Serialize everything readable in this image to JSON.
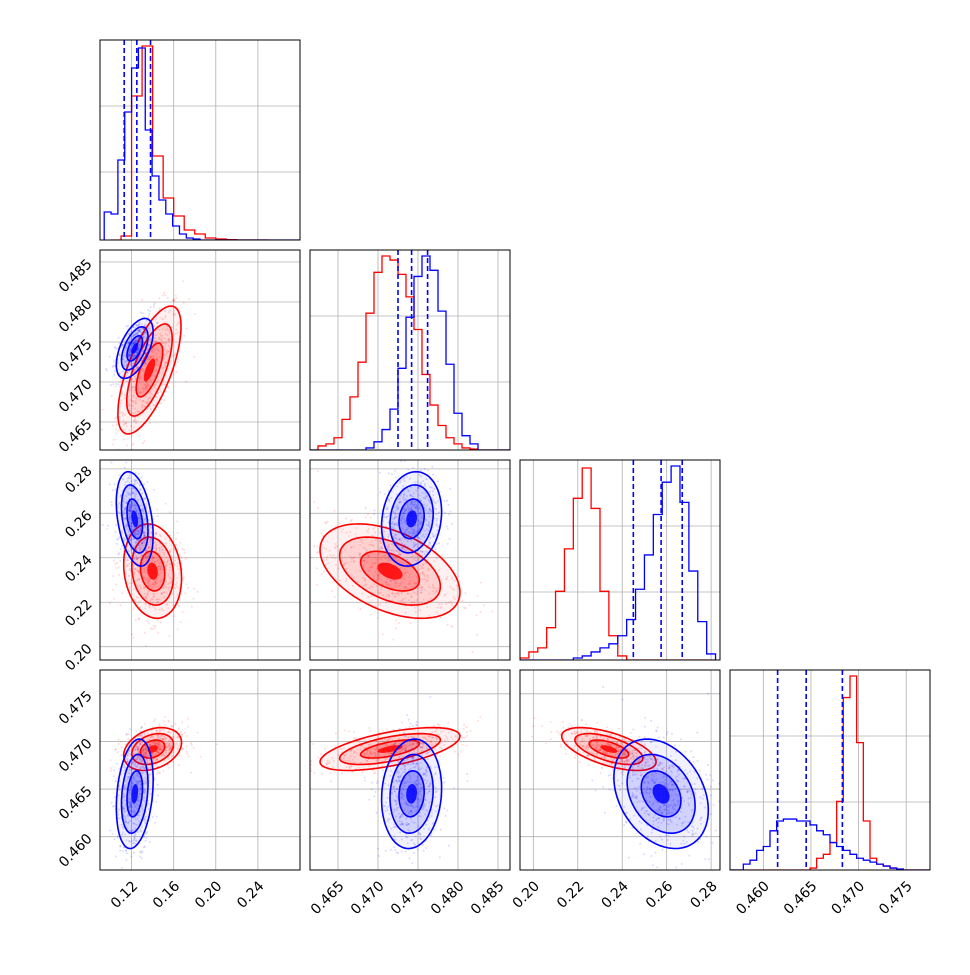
{
  "chart_data": {
    "type": "corner",
    "colors": {
      "red": "#ff0000",
      "blue": "#0000ff",
      "grid": "#b0b0b0"
    },
    "grid": true,
    "params": [
      {
        "range": [
          0.09,
          0.28
        ],
        "ticks": [
          "0.12",
          "0.16",
          "0.20",
          "0.24"
        ]
      },
      {
        "range": [
          0.4615,
          0.4865
        ],
        "ticks": [
          "0.465",
          "0.470",
          "0.475",
          "0.480",
          "0.485"
        ]
      },
      {
        "range": [
          0.194,
          0.284
        ],
        "ticks": [
          "0.20",
          "0.22",
          "0.24",
          "0.26",
          "0.28"
        ]
      },
      {
        "range": [
          0.4565,
          0.4775
        ],
        "ticks": [
          "0.460",
          "0.465",
          "0.470",
          "0.475"
        ]
      }
    ],
    "quantiles_blue": [
      [
        0.113,
        0.125,
        0.138
      ],
      [
        0.4725,
        0.4742,
        0.4762
      ],
      [
        0.245,
        0.2575,
        0.267
      ],
      [
        0.4615,
        0.4645,
        0.4683
      ]
    ],
    "series": [
      {
        "color": "red",
        "hists": [
          {
            "x0": 0.1,
            "dx": 0.01,
            "counts": [
              0.0,
              0.02,
              0.72,
              0.97,
              0.42,
              0.21,
              0.12,
              0.05,
              0.03,
              0.01,
              0.005,
              0.002,
              0.0,
              0.0,
              0.0
            ]
          },
          {
            "x0": 0.4615,
            "dx": 0.001,
            "counts": [
              0.0,
              0.02,
              0.03,
              0.06,
              0.15,
              0.26,
              0.43,
              0.67,
              0.87,
              0.95,
              0.93,
              0.86,
              0.75,
              0.59,
              0.37,
              0.22,
              0.12,
              0.06,
              0.03,
              0.01,
              0.005,
              0.0,
              0.0,
              0.0,
              0.0
            ]
          },
          {
            "x0": 0.194,
            "dx": 0.004,
            "counts": [
              0.01,
              0.04,
              0.06,
              0.16,
              0.34,
              0.55,
              0.8,
              0.95,
              0.75,
              0.34,
              0.12,
              0.02,
              0.0,
              0.0,
              0.0,
              0.0,
              0.0,
              0.0,
              0.0,
              0.0,
              0.0,
              0.0
            ]
          },
          {
            "x0": 0.4565,
            "dx": 0.0007,
            "counts": [
              0.0,
              0.0,
              0.0,
              0.0,
              0.0,
              0.0,
              0.0,
              0.0,
              0.0,
              0.0,
              0.0,
              0.0,
              0.01,
              0.06,
              0.08,
              0.14,
              0.35,
              0.88,
              0.99,
              0.65,
              0.25,
              0.06,
              0.03,
              0.02,
              0.01,
              0.0,
              0.0,
              0.0,
              0.0,
              0.0
            ]
          }
        ],
        "gauss2d": [
          {
            "i": 1,
            "j": 0,
            "mx": 0.137,
            "my": 0.4715,
            "sx": 0.012,
            "sy": 0.0032,
            "rho": 0.68
          },
          {
            "i": 2,
            "j": 0,
            "mx": 0.14,
            "my": 0.234,
            "sx": 0.011,
            "sy": 0.0085,
            "rho": -0.15
          },
          {
            "i": 2,
            "j": 1,
            "mx": 0.4715,
            "my": 0.234,
            "sx": 0.0035,
            "sy": 0.0085,
            "rho": -0.45
          },
          {
            "i": 3,
            "j": 0,
            "mx": 0.14,
            "my": 0.4692,
            "sx": 0.011,
            "sy": 0.0009,
            "rho": 0.3
          },
          {
            "i": 3,
            "j": 1,
            "mx": 0.4715,
            "my": 0.4692,
            "sx": 0.0035,
            "sy": 0.0009,
            "rho": 0.6
          },
          {
            "i": 3,
            "j": 2,
            "mx": 0.234,
            "my": 0.4692,
            "sx": 0.0085,
            "sy": 0.0009,
            "rho": -0.6
          }
        ]
      },
      {
        "color": "blue",
        "hists": [
          {
            "x0": 0.094,
            "dx": 0.0065,
            "counts": [
              0.14,
              0.13,
              0.4,
              0.64,
              0.86,
              0.96,
              0.55,
              0.32,
              0.2,
              0.13,
              0.07,
              0.03,
              0.01,
              0.005,
              0.0,
              0.0,
              0.0,
              0.0,
              0.0,
              0.0,
              0.0,
              0.0,
              0.0,
              0.0,
              0.0,
              0.0,
              0.0,
              0.0,
              0.0
            ]
          },
          {
            "x0": 0.4615,
            "dx": 0.001,
            "counts": [
              0.0,
              0.0,
              0.0,
              0.0,
              0.0,
              0.0,
              0.0,
              0.01,
              0.04,
              0.1,
              0.2,
              0.4,
              0.65,
              0.85,
              0.95,
              0.88,
              0.68,
              0.42,
              0.18,
              0.07,
              0.03,
              0.0,
              0.0,
              0.0,
              0.0
            ]
          },
          {
            "x0": 0.194,
            "dx": 0.004,
            "counts": [
              0.0,
              0.0,
              0.0,
              0.0,
              0.0,
              0.0,
              0.01,
              0.02,
              0.04,
              0.06,
              0.08,
              0.12,
              0.2,
              0.35,
              0.52,
              0.72,
              0.88,
              0.96,
              0.78,
              0.44,
              0.19,
              0.03
            ]
          },
          {
            "x0": 0.4565,
            "dx": 0.0007,
            "counts": [
              0.0,
              0.0,
              0.03,
              0.05,
              0.1,
              0.12,
              0.2,
              0.25,
              0.26,
              0.26,
              0.25,
              0.25,
              0.23,
              0.2,
              0.18,
              0.14,
              0.12,
              0.1,
              0.08,
              0.06,
              0.05,
              0.04,
              0.03,
              0.02,
              0.01,
              0.005,
              0.0,
              0.0,
              0.0,
              0.0
            ]
          }
        ],
        "gauss2d": [
          {
            "i": 1,
            "j": 0,
            "mx": 0.123,
            "my": 0.4742,
            "sx": 0.007,
            "sy": 0.0015,
            "rho": 0.55
          },
          {
            "i": 2,
            "j": 0,
            "mx": 0.123,
            "my": 0.2575,
            "sx": 0.007,
            "sy": 0.0085,
            "rho": -0.35
          },
          {
            "i": 2,
            "j": 1,
            "mx": 0.4742,
            "my": 0.2575,
            "sx": 0.0015,
            "sy": 0.0085,
            "rho": 0.15
          },
          {
            "i": 3,
            "j": 0,
            "mx": 0.123,
            "my": 0.4645,
            "sx": 0.007,
            "sy": 0.0023,
            "rho": 0.25
          },
          {
            "i": 3,
            "j": 1,
            "mx": 0.4742,
            "my": 0.4645,
            "sx": 0.0015,
            "sy": 0.0023,
            "rho": 0.1
          },
          {
            "i": 3,
            "j": 2,
            "mx": 0.2575,
            "my": 0.4645,
            "sx": 0.0085,
            "sy": 0.0023,
            "rho": -0.3
          }
        ]
      }
    ]
  }
}
